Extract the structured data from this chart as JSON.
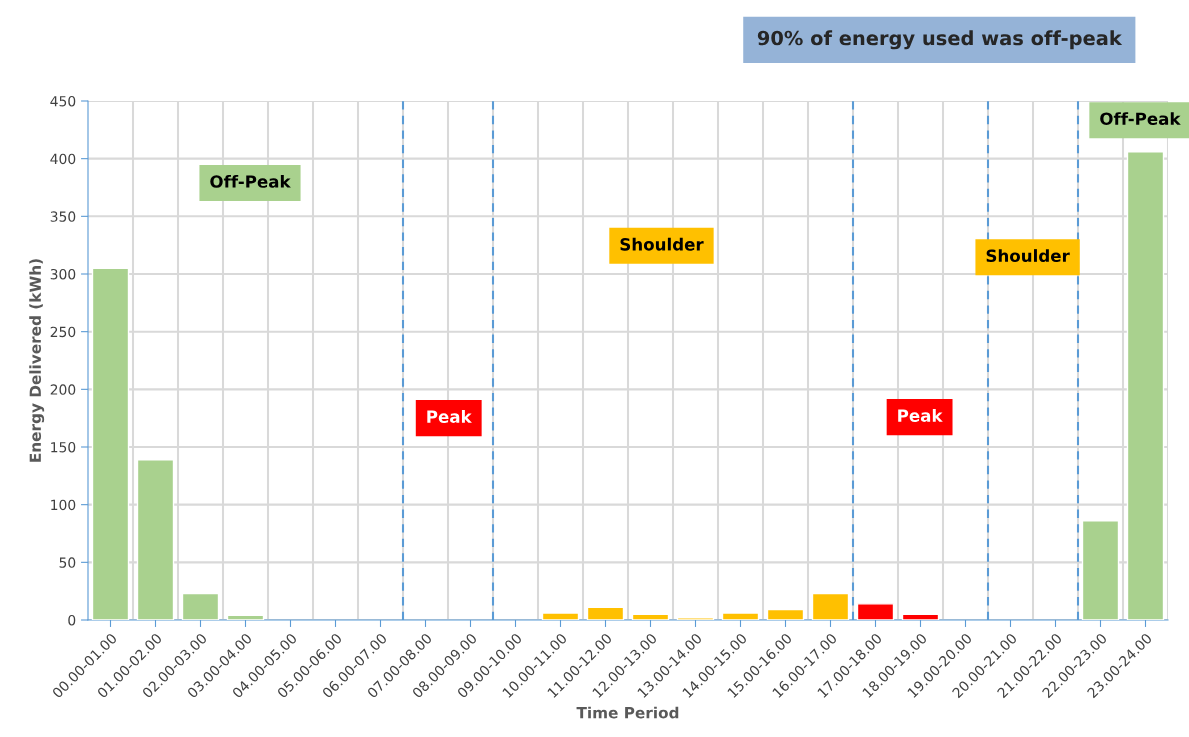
{
  "chart_data": {
    "type": "bar",
    "title": "90% of energy used was off-peak",
    "xlabel": "Time Period",
    "ylabel": "Energy Delivered (kWh)",
    "categories": [
      "00.00-01.00",
      "01.00-02.00",
      "02.00-03.00",
      "03.00-04.00",
      "04.00-05.00",
      "05.00-06.00",
      "06.00-07.00",
      "07.00-08.00",
      "08.00-09.00",
      "09.00-10.00",
      "10.00-11.00",
      "11.00-12.00",
      "12.00-13.00",
      "13.00-14.00",
      "14.00-15.00",
      "15.00-16.00",
      "16.00-17.00",
      "17.00-18.00",
      "18.00-19.00",
      "19.00-20.00",
      "20.00-21.00",
      "21.00-22.00",
      "22.00-23.00",
      "23.00-24.00"
    ],
    "values": [
      305,
      139,
      23,
      4,
      null,
      null,
      null,
      null,
      null,
      null,
      6,
      11,
      5,
      2,
      6,
      9,
      23,
      14,
      5,
      null,
      null,
      null,
      86,
      406
    ],
    "colors": [
      "#a9d18e",
      "#a9d18e",
      "#a9d18e",
      "#a9d18e",
      "#a9d18e",
      "#a9d18e",
      "#a9d18e",
      "#ff0000",
      "#ff0000",
      "#ffc000",
      "#ffc000",
      "#ffc000",
      "#ffc000",
      "#ffc000",
      "#ffc000",
      "#ffc000",
      "#ffc000",
      "#ff0000",
      "#ff0000",
      "#ff0000",
      "#ffc000",
      "#ffc000",
      "#a9d18e",
      "#a9d18e"
    ],
    "ylim": [
      0,
      450
    ],
    "yticks": [
      0,
      50,
      100,
      150,
      200,
      250,
      300,
      350,
      400,
      450
    ],
    "grid": true,
    "annotations": [
      "Off-Peak",
      "Peak",
      "Shoulder",
      "Peak",
      "Shoulder",
      "Off-Peak"
    ]
  }
}
